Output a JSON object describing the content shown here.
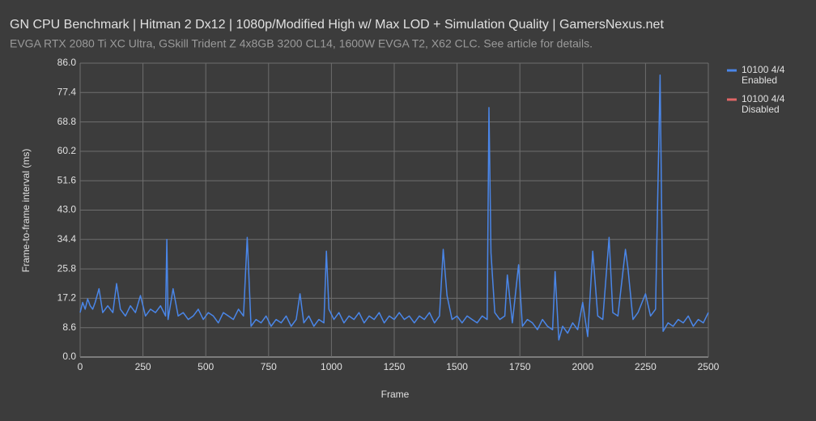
{
  "chart_data": {
    "type": "line",
    "title": "GN CPU Benchmark | Hitman 2 Dx12 | 1080p/Modified High w/ Max LOD + Simulation Quality | GamersNexus.net",
    "subtitle": "EVGA RTX 2080 Ti XC Ultra, GSkill Trident Z 4x8GB 3200 CL14, 1600W EVGA T2, X62 CLC. See article for details.",
    "x_label": "Frame",
    "y_label": "Frame-to-frame interval (ms)",
    "x": [
      0,
      10,
      20,
      30,
      40,
      50,
      60,
      75,
      90,
      110,
      130,
      145,
      160,
      180,
      200,
      220,
      240,
      260,
      280,
      300,
      320,
      340,
      345,
      350,
      370,
      390,
      410,
      430,
      450,
      470,
      490,
      510,
      530,
      550,
      570,
      590,
      610,
      630,
      650,
      665,
      680,
      700,
      720,
      740,
      760,
      780,
      800,
      820,
      840,
      860,
      875,
      890,
      910,
      930,
      950,
      970,
      980,
      990,
      1010,
      1030,
      1050,
      1070,
      1090,
      1110,
      1130,
      1150,
      1170,
      1190,
      1210,
      1230,
      1250,
      1270,
      1290,
      1310,
      1330,
      1350,
      1370,
      1390,
      1410,
      1430,
      1445,
      1460,
      1480,
      1500,
      1520,
      1540,
      1560,
      1580,
      1600,
      1620,
      1627,
      1635,
      1650,
      1670,
      1690,
      1700,
      1720,
      1745,
      1760,
      1780,
      1800,
      1820,
      1840,
      1860,
      1880,
      1890,
      1905,
      1920,
      1940,
      1960,
      1980,
      2000,
      2020,
      2040,
      2060,
      2080,
      2105,
      2120,
      2140,
      2170,
      2180,
      2200,
      2220,
      2250,
      2270,
      2290,
      2308,
      2320,
      2340,
      2360,
      2380,
      2400,
      2420,
      2440,
      2460,
      2480,
      2500
    ],
    "series": [
      {
        "name": "10100 4/4 Enabled",
        "color": "#4a86e8",
        "values": [
          13,
          16,
          14,
          17,
          15,
          14,
          16,
          20,
          13,
          15,
          13,
          21.5,
          14,
          12,
          15,
          13,
          18,
          12,
          14,
          13,
          15,
          12,
          34.4,
          11,
          20,
          12,
          13,
          11,
          12,
          14,
          11,
          13,
          12,
          10,
          13,
          12,
          11,
          14,
          12,
          35,
          9,
          11,
          10,
          12,
          9,
          11,
          10,
          12,
          9,
          11,
          18.5,
          10,
          12,
          9,
          11,
          10,
          31,
          14,
          11,
          13,
          10,
          12,
          11,
          13,
          10,
          12,
          11,
          13,
          10,
          12,
          11,
          13,
          11,
          12,
          10,
          12,
          11,
          13,
          10,
          12,
          31.5,
          18,
          11,
          12,
          10,
          12,
          11,
          10,
          12,
          11,
          73,
          30.5,
          13,
          11,
          12,
          24,
          10,
          27,
          9,
          11,
          10,
          8,
          11,
          9,
          8,
          25,
          5,
          9,
          7,
          10,
          8,
          16,
          6,
          31,
          12,
          11,
          35,
          13,
          12,
          31.5,
          26,
          11,
          13,
          18.5,
          12,
          14,
          82.5,
          7.5,
          10,
          9,
          11,
          10,
          12,
          9,
          11,
          10,
          13
        ]
      },
      {
        "name": "10100 4/4 Disabled",
        "color": "#e06666",
        "values": [
          null,
          null,
          null,
          null,
          null,
          null,
          null,
          null,
          null,
          null,
          null,
          null,
          null,
          null,
          null,
          null,
          null,
          null,
          null,
          null,
          null,
          null,
          null,
          null,
          null,
          null,
          null,
          null,
          null,
          null,
          null,
          null,
          null,
          null,
          null,
          null,
          null,
          null,
          null,
          null,
          null,
          null,
          null,
          null,
          null,
          null,
          null,
          null,
          null,
          null,
          null,
          null,
          null,
          null,
          null,
          null,
          null,
          null,
          null,
          null,
          null,
          null,
          null,
          null,
          null,
          null,
          null,
          null,
          null,
          null,
          null,
          null,
          null,
          null,
          null,
          null,
          null,
          null,
          null,
          null,
          null,
          null,
          null,
          null,
          null,
          null,
          null,
          null,
          null,
          null,
          null,
          null,
          null,
          null,
          null,
          null,
          null,
          null,
          null,
          null,
          null,
          null,
          null,
          null,
          null,
          null,
          null,
          null,
          null,
          null,
          null,
          null,
          null,
          null,
          null,
          null,
          null,
          null,
          null,
          null,
          null,
          null,
          null,
          null,
          null,
          null,
          null,
          null,
          null,
          null,
          null,
          null,
          null,
          null,
          null,
          null,
          null
        ]
      }
    ],
    "xlim": [
      0,
      2500
    ],
    "xticks": [
      0,
      250,
      500,
      750,
      1000,
      1250,
      1500,
      1750,
      2000,
      2250,
      2500
    ],
    "ylim": [
      0,
      86
    ],
    "yticks": [
      {
        "value": 0,
        "label": "0.0"
      },
      8.6,
      17.2,
      25.8,
      34.4,
      {
        "value": 43,
        "label": "43.0"
      },
      51.6,
      60.2,
      68.8,
      77.4,
      {
        "value": 86,
        "label": "86.0"
      }
    ],
    "grid": true,
    "legend": "right"
  }
}
